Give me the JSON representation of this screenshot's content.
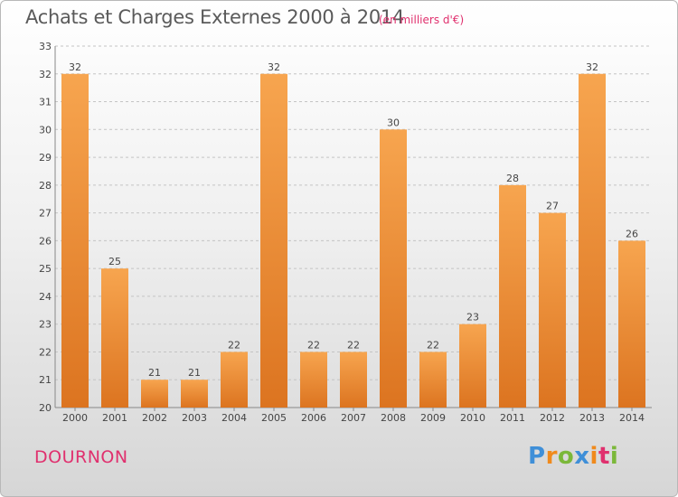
{
  "header": {
    "title": "Achats et Charges Externes 2000 à 2014",
    "unit": "(en milliers d'€)"
  },
  "footer": {
    "commune": "DOURNON",
    "logo": "Proxiti"
  },
  "colors": {
    "bar_light": "#f7a54f",
    "bar_dark": "#dc7420",
    "accent": "#e0306e"
  },
  "chart_data": {
    "type": "bar",
    "title": "Achats et Charges Externes 2000 à 2014",
    "subtitle": "(en milliers d'€)",
    "categories": [
      "2000",
      "2001",
      "2002",
      "2003",
      "2004",
      "2005",
      "2006",
      "2007",
      "2008",
      "2009",
      "2010",
      "2011",
      "2012",
      "2013",
      "2014"
    ],
    "values": [
      32,
      25,
      21,
      21,
      22,
      32,
      22,
      22,
      30,
      22,
      23,
      28,
      27,
      32,
      26
    ],
    "ylim": [
      20,
      33
    ],
    "yticks": [
      20,
      21,
      22,
      23,
      24,
      25,
      26,
      27,
      28,
      29,
      30,
      31,
      32,
      33
    ],
    "grid": "horizontal dashed",
    "data_labels": true
  }
}
